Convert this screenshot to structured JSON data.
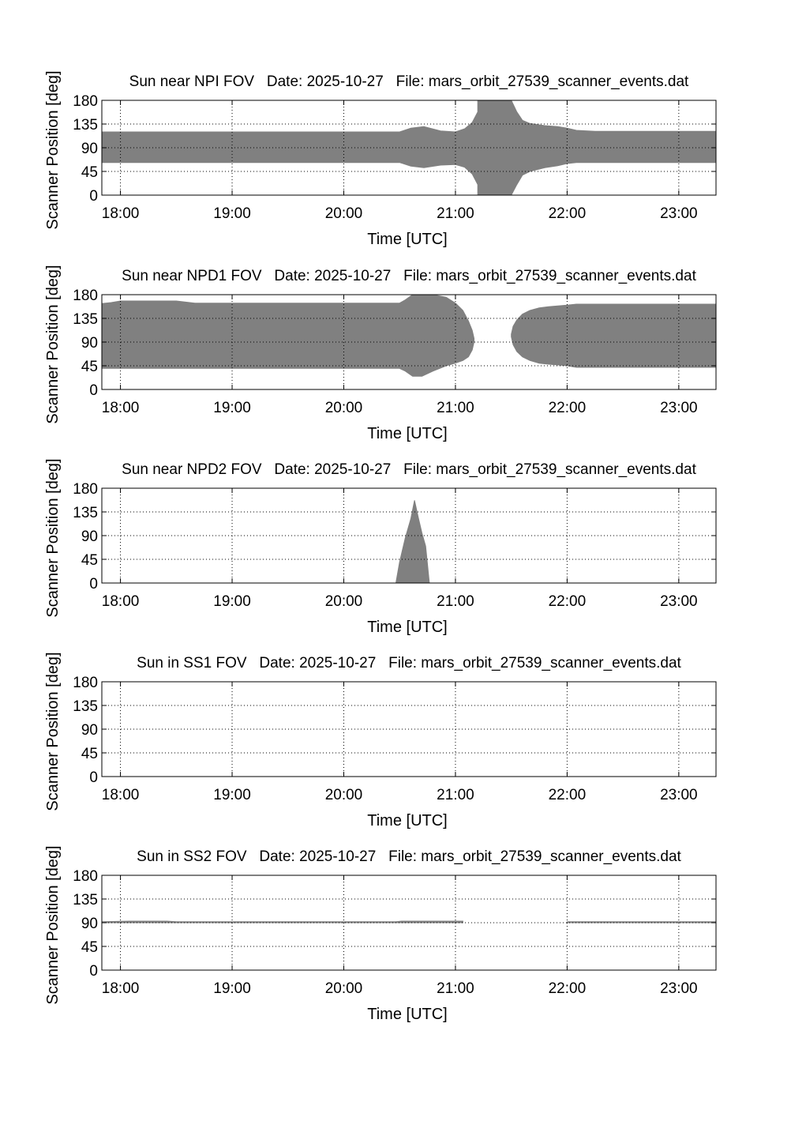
{
  "figure": {
    "fill_color": "#808080",
    "axis_color": "#000000",
    "background": "#ffffff"
  },
  "chart_data": [
    {
      "type": "area",
      "title": "Sun near NPI FOV   Date: 2025-10-27   File: mars_orbit_27539_scanner_events.dat",
      "xlabel": "Time [UTC]",
      "ylabel": "Scanner Position [deg]",
      "xlim": [
        "17:50",
        "23:20"
      ],
      "ylim": [
        0,
        180
      ],
      "xticks": [
        "18:00",
        "19:00",
        "20:00",
        "21:00",
        "22:00",
        "23:00"
      ],
      "yticks": [
        0,
        45,
        90,
        135,
        180
      ],
      "grid": true,
      "series": [
        {
          "x": [
            "17:50",
            "20:30",
            "20:36",
            "20:43",
            "20:52",
            "21:00",
            "21:05",
            "21:09",
            "21:12",
            "21:12",
            "21:30",
            "21:33",
            "21:36",
            "21:40",
            "21:48",
            "21:55",
            "22:00",
            "22:05",
            "22:15",
            "23:20"
          ],
          "upper": [
            120,
            120,
            127,
            130,
            122,
            120,
            126,
            138,
            158,
            180,
            180,
            158,
            142,
            136,
            132,
            130,
            127,
            123,
            121,
            121
          ],
          "lower": [
            62,
            62,
            55,
            52,
            57,
            58,
            53,
            40,
            20,
            0,
            0,
            20,
            38,
            45,
            52,
            56,
            60,
            62,
            62,
            62
          ]
        }
      ]
    },
    {
      "type": "area",
      "title": "Sun near NPD1 FOV   Date: 2025-10-27   File: mars_orbit_27539_scanner_events.dat",
      "xlabel": "Time [UTC]",
      "ylabel": "Scanner Position [deg]",
      "xlim": [
        "17:50",
        "23:20"
      ],
      "ylim": [
        0,
        180
      ],
      "xticks": [
        "18:00",
        "19:00",
        "20:00",
        "21:00",
        "22:00",
        "23:00"
      ],
      "yticks": [
        0,
        45,
        90,
        135,
        180
      ],
      "grid": true,
      "series": [
        {
          "x": [
            "17:50",
            "17:55",
            "18:00",
            "18:30",
            "18:40",
            "20:30",
            "20:33",
            "20:37",
            "20:42",
            "20:48",
            "20:55",
            "21:00",
            "21:04",
            "21:07",
            "21:09",
            "21:10"
          ],
          "upper": [
            163,
            165,
            168,
            168,
            164,
            164,
            170,
            180,
            180,
            180,
            175,
            164,
            150,
            130,
            112,
            97
          ],
          "lower": [
            40,
            40,
            40,
            40,
            40,
            40,
            35,
            25,
            25,
            35,
            45,
            50,
            55,
            62,
            75,
            90
          ]
        },
        {
          "x": [
            "21:30",
            "21:31",
            "21:33",
            "21:36",
            "21:40",
            "21:45",
            "21:50",
            "22:00",
            "22:05",
            "23:20"
          ],
          "upper": [
            105,
            120,
            132,
            143,
            150,
            155,
            157,
            160,
            162,
            162
          ],
          "lower": [
            100,
            85,
            72,
            62,
            55,
            50,
            48,
            45,
            42,
            42
          ]
        }
      ]
    },
    {
      "type": "area",
      "title": "Sun near NPD2 FOV   Date: 2025-10-27   File: mars_orbit_27539_scanner_events.dat",
      "xlabel": "Time [UTC]",
      "ylabel": "Scanner Position [deg]",
      "xlim": [
        "17:50",
        "23:20"
      ],
      "ylim": [
        0,
        180
      ],
      "xticks": [
        "18:00",
        "19:00",
        "20:00",
        "21:00",
        "22:00",
        "23:00"
      ],
      "yticks": [
        0,
        45,
        90,
        135,
        180
      ],
      "grid": true,
      "series": [
        {
          "x": [
            "20:28",
            "20:30",
            "20:33",
            "20:36",
            "20:38",
            "20:40",
            "20:42",
            "20:44",
            "20:46"
          ],
          "upper": [
            0,
            40,
            85,
            122,
            157,
            125,
            95,
            70,
            0
          ],
          "lower": [
            0,
            0,
            0,
            0,
            0,
            0,
            0,
            0,
            0
          ]
        }
      ]
    },
    {
      "type": "area",
      "title": "Sun in SS1 FOV   Date: 2025-10-27   File: mars_orbit_27539_scanner_events.dat",
      "xlabel": "Time [UTC]",
      "ylabel": "Scanner Position [deg]",
      "xlim": [
        "17:50",
        "23:20"
      ],
      "ylim": [
        0,
        180
      ],
      "xticks": [
        "18:00",
        "19:00",
        "20:00",
        "21:00",
        "22:00",
        "23:00"
      ],
      "yticks": [
        0,
        45,
        90,
        135,
        180
      ],
      "grid": true,
      "series": []
    },
    {
      "type": "area",
      "title": "Sun in SS2 FOV   Date: 2025-10-27   File: mars_orbit_27539_scanner_events.dat",
      "xlabel": "Time [UTC]",
      "ylabel": "Scanner Position [deg]",
      "xlim": [
        "17:50",
        "23:20"
      ],
      "ylim": [
        0,
        180
      ],
      "xticks": [
        "18:00",
        "19:00",
        "20:00",
        "21:00",
        "22:00",
        "23:00"
      ],
      "yticks": [
        0,
        45,
        90,
        135,
        180
      ],
      "grid": true,
      "series": [
        {
          "x": [
            "17:50",
            "18:05",
            "18:25",
            "18:30",
            "20:28",
            "20:31",
            "20:55",
            "21:04"
          ],
          "upper": [
            92,
            93,
            93,
            92,
            92,
            93,
            93,
            93
          ],
          "lower": [
            90,
            90,
            90,
            90,
            90,
            90,
            90,
            90
          ]
        },
        {
          "x": [
            "22:00",
            "23:20"
          ],
          "upper": [
            92,
            92
          ],
          "lower": [
            90,
            90
          ]
        }
      ]
    }
  ]
}
